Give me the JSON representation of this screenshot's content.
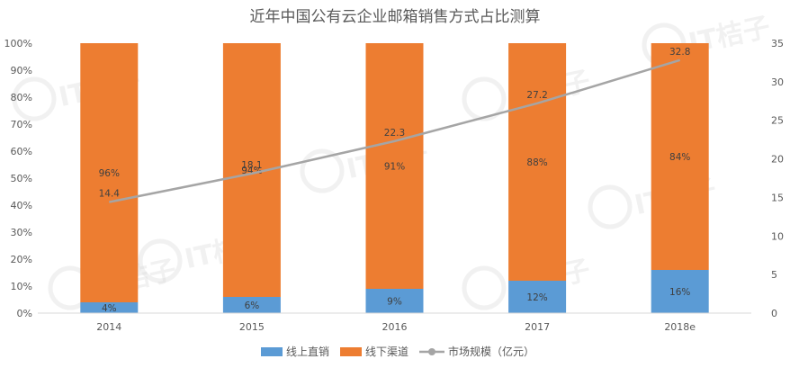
{
  "chart_data": {
    "type": "bar",
    "title": "近年中国公有云企业邮箱销售方式占比测算",
    "categories": [
      "2014",
      "2015",
      "2016",
      "2017",
      "2018e"
    ],
    "series": [
      {
        "name": "线上直销",
        "kind": "stacked-bar",
        "axis": "left",
        "color": "#5b9bd5",
        "values": [
          4,
          6,
          9,
          12,
          16
        ],
        "labels": [
          "4%",
          "6%",
          "9%",
          "12%",
          "16%"
        ]
      },
      {
        "name": "线下渠道",
        "kind": "stacked-bar",
        "axis": "left",
        "color": "#ed7d31",
        "values": [
          96,
          94,
          91,
          88,
          84
        ],
        "labels": [
          "96%",
          "94%",
          "91%",
          "88%",
          "84%"
        ]
      },
      {
        "name": "市场规模（亿元）",
        "kind": "line",
        "axis": "right",
        "color": "#a5a5a5",
        "values": [
          14.4,
          18.1,
          22.3,
          27.2,
          32.8
        ],
        "labels": [
          "14.4",
          "18.1",
          "22.3",
          "27.2",
          "32.8"
        ]
      }
    ],
    "y_left": {
      "ticks": [
        "0%",
        "10%",
        "20%",
        "30%",
        "40%",
        "50%",
        "60%",
        "70%",
        "80%",
        "90%",
        "100%"
      ],
      "ylim": [
        0,
        100
      ]
    },
    "y_right": {
      "ticks": [
        "0",
        "5",
        "10",
        "15",
        "20",
        "25",
        "30",
        "35"
      ],
      "ylim": [
        0,
        35
      ]
    },
    "grid": false,
    "legend_position": "bottom",
    "watermark": "IT桔子"
  }
}
